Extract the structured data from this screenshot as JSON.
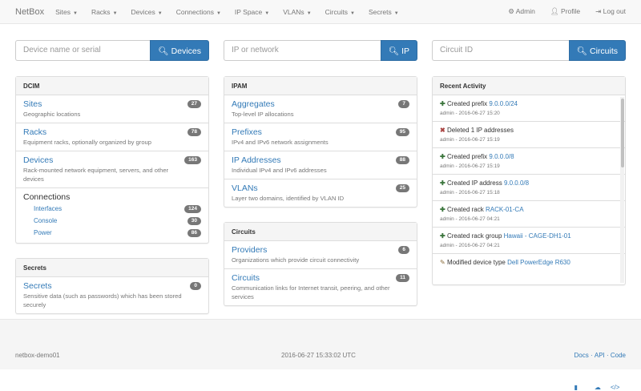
{
  "nav": {
    "brand": "NetBox",
    "menus": [
      "Sites",
      "Racks",
      "Devices",
      "Connections",
      "IP Space",
      "VLANs",
      "Circuits",
      "Secrets"
    ],
    "admin": "Admin",
    "profile": "Profile",
    "logout": "Log out"
  },
  "search": [
    {
      "placeholder": "Device name or serial",
      "button": "Devices"
    },
    {
      "placeholder": "IP or network",
      "button": "IP"
    },
    {
      "placeholder": "Circuit ID",
      "button": "Circuits"
    }
  ],
  "dcim": {
    "title": "DCIM",
    "items": [
      {
        "label": "Sites",
        "desc": "Geographic locations",
        "count": "27"
      },
      {
        "label": "Racks",
        "desc": "Equipment racks, optionally organized by group",
        "count": "78"
      },
      {
        "label": "Devices",
        "desc": "Rack-mounted network equipment, servers, and other devices",
        "count": "163"
      }
    ],
    "connections": {
      "label": "Connections",
      "items": [
        {
          "label": "Interfaces",
          "count": "124"
        },
        {
          "label": "Console",
          "count": "30"
        },
        {
          "label": "Power",
          "count": "86"
        }
      ]
    }
  },
  "secrets": {
    "title": "Secrets",
    "items": [
      {
        "label": "Secrets",
        "desc": "Sensitive data (such as passwords) which has been stored securely",
        "count": "0"
      }
    ]
  },
  "ipam": {
    "title": "IPAM",
    "items": [
      {
        "label": "Aggregates",
        "desc": "Top-level IP allocations",
        "count": "7"
      },
      {
        "label": "Prefixes",
        "desc": "IPv4 and IPv6 network assignments",
        "count": "95"
      },
      {
        "label": "IP Addresses",
        "desc": "Individual IPv4 and IPv6 addresses",
        "count": "88"
      },
      {
        "label": "VLANs",
        "desc": "Layer two domains, identified by VLAN ID",
        "count": "25"
      }
    ]
  },
  "circuits": {
    "title": "Circuits",
    "items": [
      {
        "label": "Providers",
        "desc": "Organizations which provide circuit connectivity",
        "count": "6"
      },
      {
        "label": "Circuits",
        "desc": "Communication links for Internet transit, peering, and other services",
        "count": "11"
      }
    ]
  },
  "activity": {
    "title": "Recent Activity",
    "items": [
      {
        "icon": "plus",
        "action": "Created prefix",
        "link": "9.0.0.0/24",
        "meta": "admin - 2016-06-27 15:20"
      },
      {
        "icon": "x",
        "action": "Deleted 1 IP addresses",
        "link": "",
        "meta": "admin - 2016-06-27 15:19"
      },
      {
        "icon": "plus",
        "action": "Created prefix",
        "link": "9.0.0.0/8",
        "meta": "admin - 2016-06-27 15:19"
      },
      {
        "icon": "plus",
        "action": "Created IP address",
        "link": "9.0.0.0/8",
        "meta": "admin - 2016-06-27 15:18"
      },
      {
        "icon": "plus",
        "action": "Created rack",
        "link": "RACK-01-CA",
        "meta": "admin - 2016-06-27 04:21"
      },
      {
        "icon": "plus",
        "action": "Created rack group",
        "link": "Hawaii - CAGE-DH1-01",
        "meta": "admin - 2016-06-27 04:21"
      },
      {
        "icon": "pencil",
        "action": "Modified device type",
        "link": "Dell PowerEdge R630",
        "meta": ""
      }
    ]
  },
  "footer": {
    "hostname": "netbox-demo01",
    "time": "2016-06-27 15:33:02 UTC",
    "docs": "Docs",
    "api": "API",
    "code": "Code"
  }
}
